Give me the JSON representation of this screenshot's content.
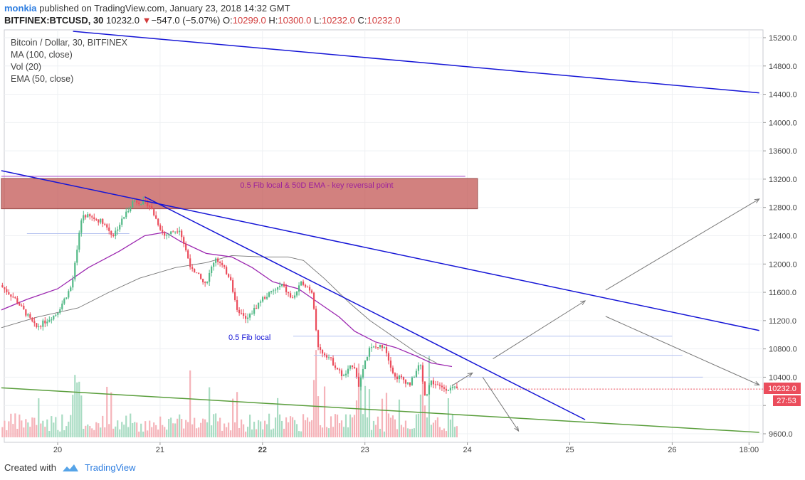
{
  "header": {
    "author": "monkia",
    "published_text": "published on TradingView.com, January 23, 2018 14:32 GMT",
    "symbol": "BITFINEX:BTCUSD, 30",
    "last_price": "10232.0",
    "change_arrow": "▼",
    "change": "−547.0 (−5.07%)",
    "ohlc": {
      "o_label": "O:",
      "o": "10299.0",
      "h_label": "H:",
      "h": "10300.0",
      "l_label": "L:",
      "l": "10232.0",
      "c_label": "C:",
      "c": "10232.0"
    }
  },
  "legend": {
    "title": "Bitcoin / Dollar, 30, BITFINEX",
    "ma": "MA (100, close)",
    "vol": "Vol (20)",
    "ema": "EMA (50, close)"
  },
  "annotations": {
    "zone_label": "0.5 Fib local & 50D EMA - key reversal point",
    "fib_label": "0.5 Fib local"
  },
  "price_tag": {
    "price": "10232.0",
    "countdown": "27:53"
  },
  "footer": {
    "created_with": "Created with",
    "brand": "TradingView"
  },
  "colors": {
    "up": "#53b987",
    "down": "#eb4d5c",
    "vol_up": "#a9dcc3",
    "vol_down": "#f5b3b9",
    "ema": "#9c27b0",
    "ma": "#555555",
    "trend_blue": "#1515d6",
    "trend_green": "#5a9e3c",
    "zone_fill": "#c0504d"
  },
  "chart_data": {
    "type": "candlestick",
    "title": "Bitcoin / Dollar, 30, BITFINEX",
    "y_ticks": [
      9600,
      10000,
      10400,
      10800,
      11200,
      11600,
      12000,
      12400,
      12800,
      13200,
      13600,
      14000,
      14400,
      14800,
      15200
    ],
    "y_tick_labels": [
      "9600.0",
      "",
      "10400.0",
      "10800.0",
      "11200.0",
      "11600.0",
      "12000.0",
      "12400.0",
      "12800.0",
      "13200.0",
      "13600.0",
      "14000.0",
      "14400.0",
      "14800.0",
      "15200.0"
    ],
    "x_ticks": [
      {
        "label": "20",
        "day": 20
      },
      {
        "label": "21",
        "day": 21
      },
      {
        "label": "22",
        "day": 22,
        "bold": true
      },
      {
        "label": "23",
        "day": 23
      },
      {
        "label": "24",
        "day": 24
      },
      {
        "label": "25",
        "day": 25
      },
      {
        "label": "26",
        "day": 26
      },
      {
        "label": "18:00",
        "day": 26.75
      }
    ],
    "price_path": [
      [
        19.45,
        11700
      ],
      [
        19.6,
        11500
      ],
      [
        19.8,
        11100
      ],
      [
        20.0,
        11300
      ],
      [
        20.15,
        11700
      ],
      [
        20.25,
        12700
      ],
      [
        20.45,
        12600
      ],
      [
        20.55,
        12400
      ],
      [
        20.75,
        12900
      ],
      [
        20.9,
        12850
      ],
      [
        21.05,
        12400
      ],
      [
        21.2,
        12500
      ],
      [
        21.3,
        12000
      ],
      [
        21.45,
        11700
      ],
      [
        21.55,
        12100
      ],
      [
        21.7,
        11800
      ],
      [
        21.75,
        11400
      ],
      [
        21.85,
        11200
      ],
      [
        22.0,
        11500
      ],
      [
        22.2,
        11700
      ],
      [
        22.3,
        11500
      ],
      [
        22.4,
        11750
      ],
      [
        22.5,
        11600
      ],
      [
        22.55,
        10800
      ],
      [
        22.65,
        10700
      ],
      [
        22.8,
        10400
      ],
      [
        22.9,
        10600
      ],
      [
        22.95,
        10300
      ],
      [
        23.05,
        10800
      ],
      [
        23.2,
        10850
      ],
      [
        23.3,
        10400
      ],
      [
        23.35,
        10400
      ],
      [
        23.45,
        10300
      ],
      [
        23.55,
        10600
      ],
      [
        23.6,
        10100
      ],
      [
        23.65,
        10350
      ],
      [
        23.75,
        10250
      ],
      [
        23.9,
        10232
      ]
    ],
    "ema50": [
      [
        19.45,
        11350
      ],
      [
        19.7,
        11500
      ],
      [
        20.0,
        11650
      ],
      [
        20.3,
        11950
      ],
      [
        20.6,
        12180
      ],
      [
        20.85,
        12400
      ],
      [
        21.05,
        12450
      ],
      [
        21.2,
        12320
      ],
      [
        21.45,
        12150
      ],
      [
        21.7,
        12100
      ],
      [
        21.9,
        11950
      ],
      [
        22.1,
        11750
      ],
      [
        22.35,
        11650
      ],
      [
        22.55,
        11450
      ],
      [
        22.75,
        11250
      ],
      [
        22.9,
        11050
      ],
      [
        23.1,
        10900
      ],
      [
        23.3,
        10820
      ],
      [
        23.5,
        10700
      ],
      [
        23.65,
        10600
      ],
      [
        23.85,
        10550
      ]
    ],
    "ma100": [
      [
        19.45,
        11100
      ],
      [
        19.8,
        11250
      ],
      [
        20.2,
        11380
      ],
      [
        20.5,
        11600
      ],
      [
        20.8,
        11800
      ],
      [
        21.15,
        11950
      ],
      [
        21.45,
        12020
      ],
      [
        21.7,
        12120
      ],
      [
        22.0,
        12100
      ],
      [
        22.25,
        12100
      ],
      [
        22.4,
        12050
      ],
      [
        22.6,
        11800
      ],
      [
        22.85,
        11450
      ],
      [
        23.05,
        11200
      ],
      [
        23.3,
        10950
      ],
      [
        23.5,
        10750
      ],
      [
        23.7,
        10600
      ]
    ],
    "horizontal_levels": [
      {
        "price": 12430,
        "from_day": 19.7,
        "to_day": 20.7
      },
      {
        "price": 10980,
        "from_day": 22.3,
        "to_day": 26.0
      },
      {
        "price": 10710,
        "from_day": 22.5,
        "to_day": 26.1
      },
      {
        "price": 10400,
        "from_day": 22.9,
        "to_day": 26.3
      },
      {
        "price": 10232,
        "from_day": 23.9,
        "to_day": 27.0
      },
      {
        "price": 13240,
        "from_day": 19.45,
        "to_day": 23.98
      }
    ],
    "key_zone": {
      "from_day": 19.45,
      "to_day": 24.1,
      "low": 12780,
      "high": 13210
    },
    "trendlines": [
      {
        "name": "upper",
        "from": [
          20.15,
          15290
        ],
        "to": [
          26.85,
          14420
        ]
      },
      {
        "name": "mid",
        "from": [
          19.45,
          13320
        ],
        "to": [
          26.85,
          11060
        ]
      },
      {
        "name": "short",
        "from": [
          20.85,
          12950
        ],
        "to": [
          25.15,
          9800
        ]
      },
      {
        "name": "green",
        "from": [
          19.45,
          10250
        ],
        "to": [
          26.85,
          9620
        ]
      }
    ],
    "arrows": [
      [
        [
          23.85,
          10280
        ],
        [
          24.05,
          10460
        ]
      ],
      [
        [
          24.15,
          10400
        ],
        [
          24.5,
          9640
        ]
      ],
      [
        [
          24.25,
          10660
        ],
        [
          25.15,
          11480
        ]
      ],
      [
        [
          25.35,
          11630
        ],
        [
          26.85,
          12920
        ]
      ],
      [
        [
          25.35,
          11260
        ],
        [
          26.85,
          10290
        ]
      ]
    ]
  }
}
